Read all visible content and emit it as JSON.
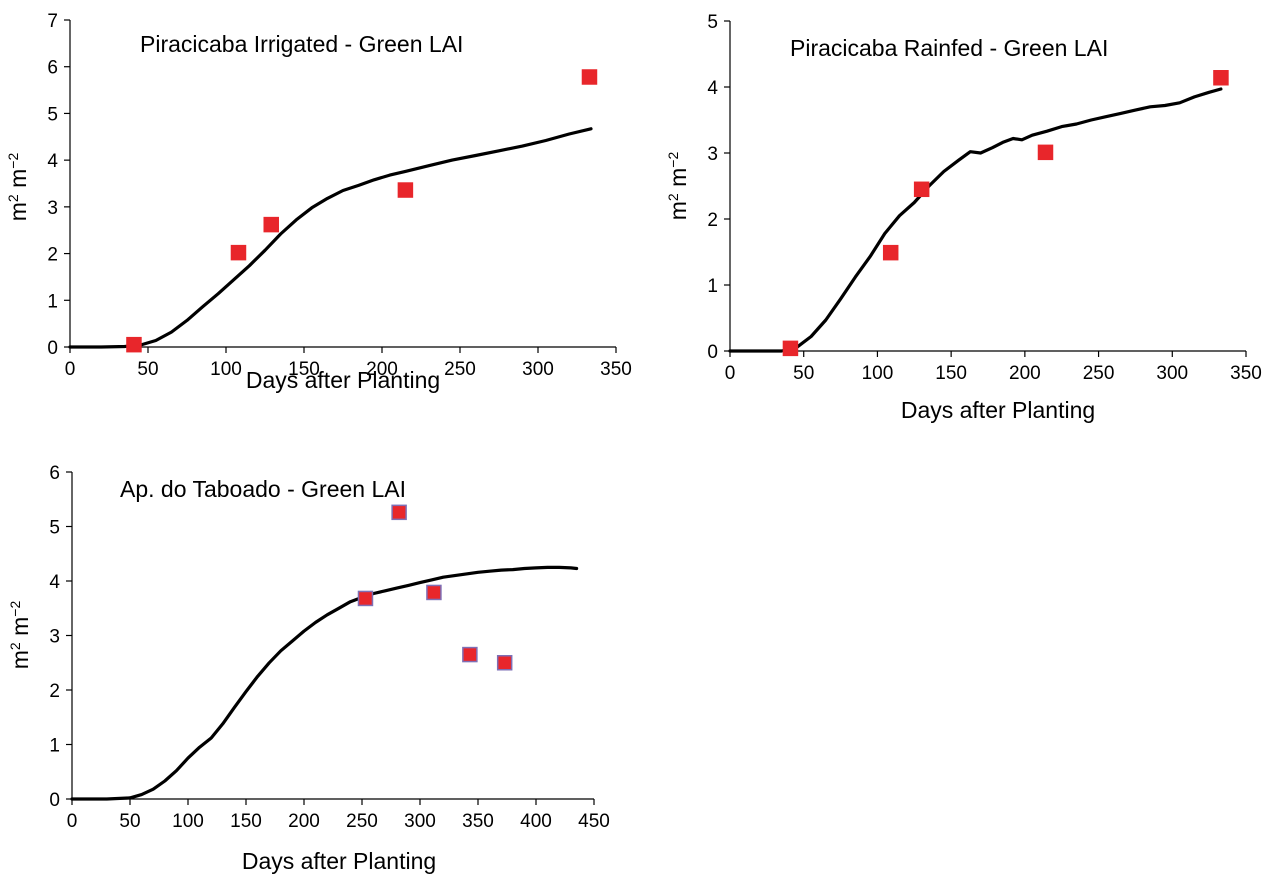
{
  "chart_data": [
    {
      "type": "line",
      "title": "Piracicaba Irrigated - Green LAI",
      "xlabel": "Days after Planting",
      "ylabel_main": "m",
      "ylabel_sup1": "2",
      "ylabel_mid": " m",
      "ylabel_sup2": "−2",
      "xlim": [
        0,
        350
      ],
      "ylim": [
        0,
        7
      ],
      "xticks": [
        0,
        50,
        100,
        150,
        200,
        250,
        300,
        350
      ],
      "yticks": [
        0,
        1,
        2,
        3,
        4,
        5,
        6,
        7
      ],
      "grid": false,
      "legend": "none",
      "marker_color": "#e8262b",
      "marker_edge": "#e8262b",
      "series": [
        {
          "kind": "line",
          "x": [
            0,
            20,
            35,
            45,
            55,
            65,
            75,
            85,
            95,
            105,
            115,
            125,
            135,
            145,
            155,
            165,
            175,
            185,
            195,
            205,
            215,
            230,
            245,
            260,
            275,
            290,
            305,
            320,
            334
          ],
          "y": [
            0.0,
            0.0,
            0.01,
            0.04,
            0.14,
            0.32,
            0.57,
            0.86,
            1.14,
            1.44,
            1.74,
            2.07,
            2.42,
            2.72,
            2.98,
            3.18,
            3.35,
            3.46,
            3.58,
            3.68,
            3.76,
            3.88,
            4.0,
            4.1,
            4.2,
            4.3,
            4.42,
            4.56,
            4.67
          ]
        },
        {
          "kind": "scatter",
          "x": [
            41,
            108,
            129,
            215,
            333
          ],
          "y": [
            0.05,
            2.02,
            2.62,
            3.36,
            5.78
          ]
        }
      ]
    },
    {
      "type": "line",
      "title": "Piracicaba Rainfed - Green LAI",
      "xlabel": "Days after Planting",
      "ylabel_main": "m",
      "ylabel_sup1": "2",
      "ylabel_mid": " m",
      "ylabel_sup2": "−2",
      "xlim": [
        0,
        350
      ],
      "ylim": [
        0,
        5
      ],
      "xticks": [
        0,
        50,
        100,
        150,
        200,
        250,
        300,
        350
      ],
      "yticks": [
        0,
        1,
        2,
        3,
        4,
        5
      ],
      "grid": false,
      "legend": "none",
      "marker_color": "#e8262b",
      "marker_edge": "#e8262b",
      "series": [
        {
          "kind": "line",
          "x": [
            0,
            20,
            35,
            45,
            55,
            65,
            75,
            85,
            95,
            105,
            115,
            125,
            135,
            145,
            155,
            163,
            170,
            178,
            185,
            192,
            198,
            205,
            215,
            225,
            235,
            245,
            255,
            265,
            275,
            285,
            295,
            305,
            315,
            325,
            333
          ],
          "y": [
            0.0,
            0.0,
            0.0,
            0.05,
            0.22,
            0.47,
            0.79,
            1.12,
            1.43,
            1.78,
            2.05,
            2.25,
            2.5,
            2.72,
            2.89,
            3.02,
            3.0,
            3.08,
            3.16,
            3.22,
            3.2,
            3.27,
            3.33,
            3.4,
            3.44,
            3.5,
            3.55,
            3.6,
            3.65,
            3.7,
            3.72,
            3.76,
            3.85,
            3.92,
            3.97
          ]
        },
        {
          "kind": "scatter",
          "x": [
            41,
            109,
            130,
            214,
            333
          ],
          "y": [
            0.04,
            1.49,
            2.45,
            3.01,
            4.14
          ]
        }
      ]
    },
    {
      "type": "line",
      "title": "Ap. do Taboado - Green LAI",
      "xlabel": "Days after Planting",
      "ylabel_main": "m",
      "ylabel_sup1": "2",
      "ylabel_mid": " m",
      "ylabel_sup2": "−2",
      "xlim": [
        0,
        450
      ],
      "ylim": [
        0,
        6
      ],
      "xticks": [
        0,
        50,
        100,
        150,
        200,
        250,
        300,
        350,
        400,
        450
      ],
      "yticks": [
        0,
        1,
        2,
        3,
        4,
        5,
        6
      ],
      "grid": false,
      "legend": "none",
      "marker_color": "#e8262b",
      "marker_edge": "#7e6fb5",
      "series": [
        {
          "kind": "line",
          "x": [
            0,
            30,
            50,
            60,
            70,
            80,
            90,
            100,
            110,
            120,
            130,
            140,
            150,
            160,
            170,
            180,
            190,
            200,
            210,
            220,
            230,
            240,
            250,
            260,
            270,
            280,
            290,
            300,
            310,
            320,
            330,
            340,
            350,
            360,
            370,
            380,
            390,
            400,
            410,
            420,
            430,
            435
          ],
          "y": [
            0.0,
            0.0,
            0.02,
            0.08,
            0.18,
            0.33,
            0.52,
            0.75,
            0.95,
            1.12,
            1.38,
            1.68,
            1.97,
            2.25,
            2.5,
            2.72,
            2.9,
            3.08,
            3.24,
            3.38,
            3.5,
            3.62,
            3.7,
            3.77,
            3.82,
            3.87,
            3.92,
            3.97,
            4.02,
            4.07,
            4.1,
            4.13,
            4.16,
            4.18,
            4.2,
            4.21,
            4.23,
            4.24,
            4.25,
            4.25,
            4.24,
            4.23
          ]
        },
        {
          "kind": "scatter",
          "x": [
            253,
            282,
            312,
            343,
            373
          ],
          "y": [
            3.68,
            5.26,
            3.79,
            2.65,
            2.5
          ]
        }
      ]
    }
  ]
}
